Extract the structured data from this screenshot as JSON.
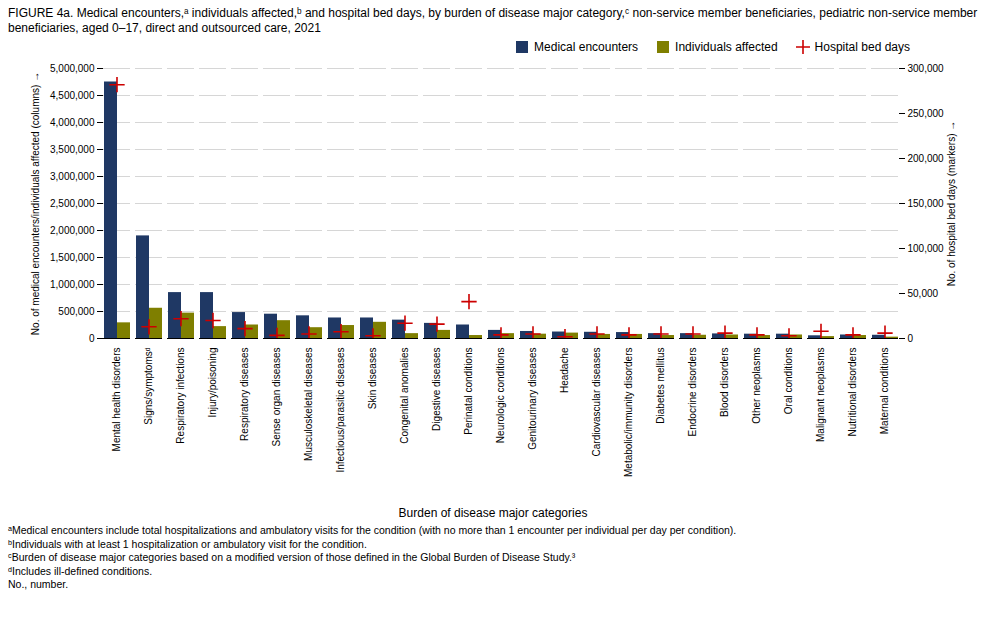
{
  "chart_data": {
    "type": "bar",
    "title": "FIGURE 4a. Medical encounters,ᵃ individuals affected,ᵇ and hospital bed days, by burden of disease major category,ᶜ non-service member beneficiaries, pediatric non-service member beneficiaries, aged 0–17, direct and outsourced care, 2021",
    "xlabel": "Burden of disease major categories",
    "ylabel": "No. of medical encounters/individuals affected (columns)",
    "y2label": "No. of hospital bed days (markers)",
    "categories": [
      "Mental health disorders",
      "Signs/symptomsᵈ",
      "Respiratory infections",
      "Injury/poisoning",
      "Respiratory diseases",
      "Sense organ diseases",
      "Musculoskeletal diseases",
      "Infectious/parasitic diseases",
      "Skin diseases",
      "Congenital anomalies",
      "Digestive diseases",
      "Perinatal conditions",
      "Neurologic conditions",
      "Genitourinary diseases",
      "Headache",
      "Cardiovascular diseases",
      "Metabolic/immunity disorders",
      "Diabetes mellitus",
      "Endocrine disorders",
      "Blood disorders",
      "Other neoplasms",
      "Oral conditions",
      "Malignant neoplasms",
      "Nutritional disorders",
      "Maternal conditions"
    ],
    "series": [
      {
        "name": "Medical encounters",
        "type": "bar",
        "color": "#1f3864",
        "values": [
          4750000,
          1900000,
          850000,
          850000,
          480000,
          450000,
          420000,
          380000,
          380000,
          340000,
          280000,
          250000,
          150000,
          130000,
          120000,
          115000,
          110000,
          90000,
          90000,
          85000,
          80000,
          80000,
          50000,
          65000,
          60000
        ]
      },
      {
        "name": "Individuals affected",
        "type": "bar",
        "color": "#7f7f00",
        "values": [
          290000,
          560000,
          470000,
          220000,
          250000,
          330000,
          200000,
          240000,
          300000,
          90000,
          150000,
          55000,
          90000,
          80000,
          100000,
          75000,
          75000,
          55000,
          60000,
          65000,
          55000,
          65000,
          35000,
          55000,
          25000
        ]
      },
      {
        "name": "Hospital bed days",
        "type": "scatter",
        "axis": "y2",
        "color": "#cc0000",
        "marker": "plus",
        "values": [
          282000,
          13000,
          22000,
          20000,
          11000,
          3500,
          5000,
          7500,
          3000,
          17000,
          16000,
          41000,
          4000,
          5000,
          2000,
          5000,
          4000,
          5000,
          5000,
          6000,
          4000,
          3000,
          8000,
          4000,
          6000
        ]
      }
    ],
    "ylim": [
      0,
      5000000
    ],
    "yticks": [
      0,
      {
        "value": 500000,
        "label": "500,000"
      },
      {
        "value": 1000000,
        "label": "1,000,000"
      },
      {
        "value": 1500000,
        "label": "1,500,000"
      },
      {
        "value": 2000000,
        "label": "2,000,000"
      },
      {
        "value": 2500000,
        "label": "2,500,000"
      },
      {
        "value": 3000000,
        "label": "3,000,000"
      },
      {
        "value": 3500000,
        "label": "3,500,000"
      },
      {
        "value": 4000000,
        "label": "4,000,000"
      },
      {
        "value": 4500000,
        "label": "4,500,000"
      },
      {
        "value": 5000000,
        "label": "5,000,000"
      }
    ],
    "y2lim": [
      0,
      300000
    ],
    "y2ticks": [
      0,
      {
        "value": 50000,
        "label": "50,000"
      },
      {
        "value": 100000,
        "label": "100,000"
      },
      {
        "value": 150000,
        "label": "150,000"
      },
      {
        "value": 200000,
        "label": "200,000"
      },
      {
        "value": 250000,
        "label": "250,000"
      },
      {
        "value": 300000,
        "label": "300,000"
      }
    ],
    "grid": true,
    "legend": "upper right",
    "annotations": [
      "ᵃMedical encounters include total hospitalizations and ambulatory visits for the condition (with no more than 1 encounter per individual per day per condition).",
      "ᵇIndividuals with at least 1 hospitalization or ambulatory visit for the condition.",
      "ᶜBurden of disease major categories based on a modified version of those defined in the Global Burden of Disease Study.³",
      "ᵈIncludes ill-defined conditions.",
      "No., number."
    ]
  }
}
